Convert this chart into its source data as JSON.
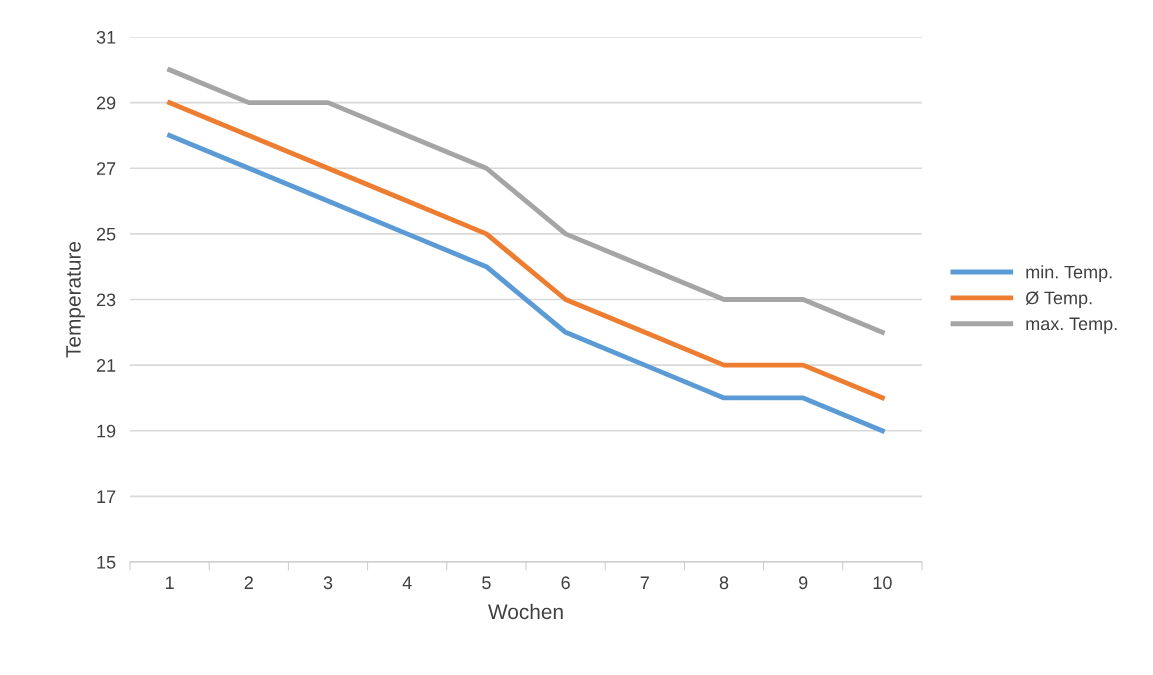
{
  "chart_data": {
    "type": "line",
    "xlabel": "Wochen",
    "ylabel": "Temperature",
    "categories": [
      "1",
      "2",
      "3",
      "4",
      "5",
      "6",
      "7",
      "8",
      "9",
      "10"
    ],
    "series": [
      {
        "name": "min. Temp.",
        "color": "#5b9bd5",
        "values": [
          28,
          27,
          26,
          25,
          24,
          22,
          21,
          20,
          20,
          19
        ]
      },
      {
        "name": "Ø Temp.",
        "color": "#ed7d31",
        "values": [
          29,
          28,
          27,
          26,
          25,
          23,
          22,
          21,
          21,
          20
        ]
      },
      {
        "name": "max. Temp.",
        "color": "#a5a5a5",
        "values": [
          30,
          29,
          29,
          28,
          27,
          25,
          24,
          23,
          23,
          22
        ]
      }
    ],
    "ylim": [
      15,
      31
    ],
    "yticks": [
      15,
      17,
      19,
      21,
      23,
      25,
      27,
      29,
      31
    ],
    "grid": "y",
    "legend": "right",
    "marker": "none",
    "line_style": "solid"
  }
}
